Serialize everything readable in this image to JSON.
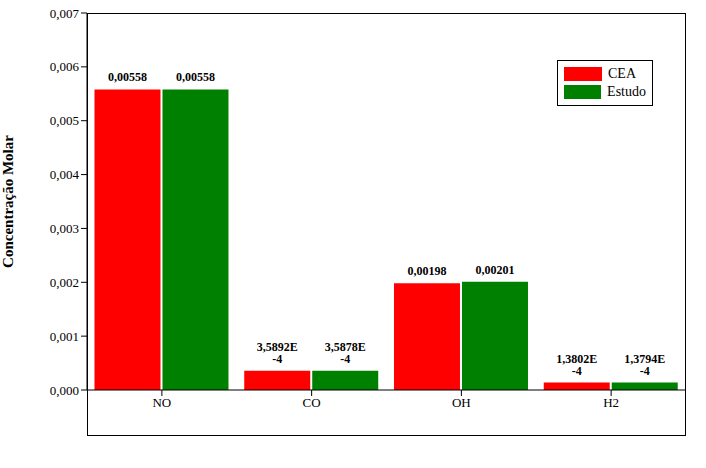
{
  "chart_data": {
    "type": "bar",
    "y_label": "Concentração Molar",
    "categories": [
      "NO",
      "CO",
      "OH",
      "H2"
    ],
    "series": [
      {
        "name": "CEA",
        "color": "#ff0000",
        "values": [
          0.00558,
          0.00035892,
          0.00198,
          0.00013802
        ],
        "value_labels": [
          "0,00558",
          "3,5892E -4",
          "0,00198",
          "1,3802E -4"
        ]
      },
      {
        "name": "Estudo",
        "color": "#008000",
        "values": [
          0.00558,
          0.00035878,
          0.00201,
          0.00013794
        ],
        "value_labels": [
          "0,00558",
          "3,5878E -4",
          "0,00201",
          "1,3794E -4"
        ]
      }
    ],
    "ylim": [
      0,
      0.007
    ],
    "yticks": [
      {
        "value": 0,
        "label": "0,000"
      },
      {
        "value": 0.001,
        "label": "0,001"
      },
      {
        "value": 0.002,
        "label": "0,002"
      },
      {
        "value": 0.003,
        "label": "0,003"
      },
      {
        "value": 0.004,
        "label": "0,004"
      },
      {
        "value": 0.005,
        "label": "0,005"
      },
      {
        "value": 0.006,
        "label": "0,006"
      },
      {
        "value": 0.007,
        "label": "0,007"
      }
    ],
    "data_labels": true,
    "legend": "upper right",
    "grid": false
  }
}
